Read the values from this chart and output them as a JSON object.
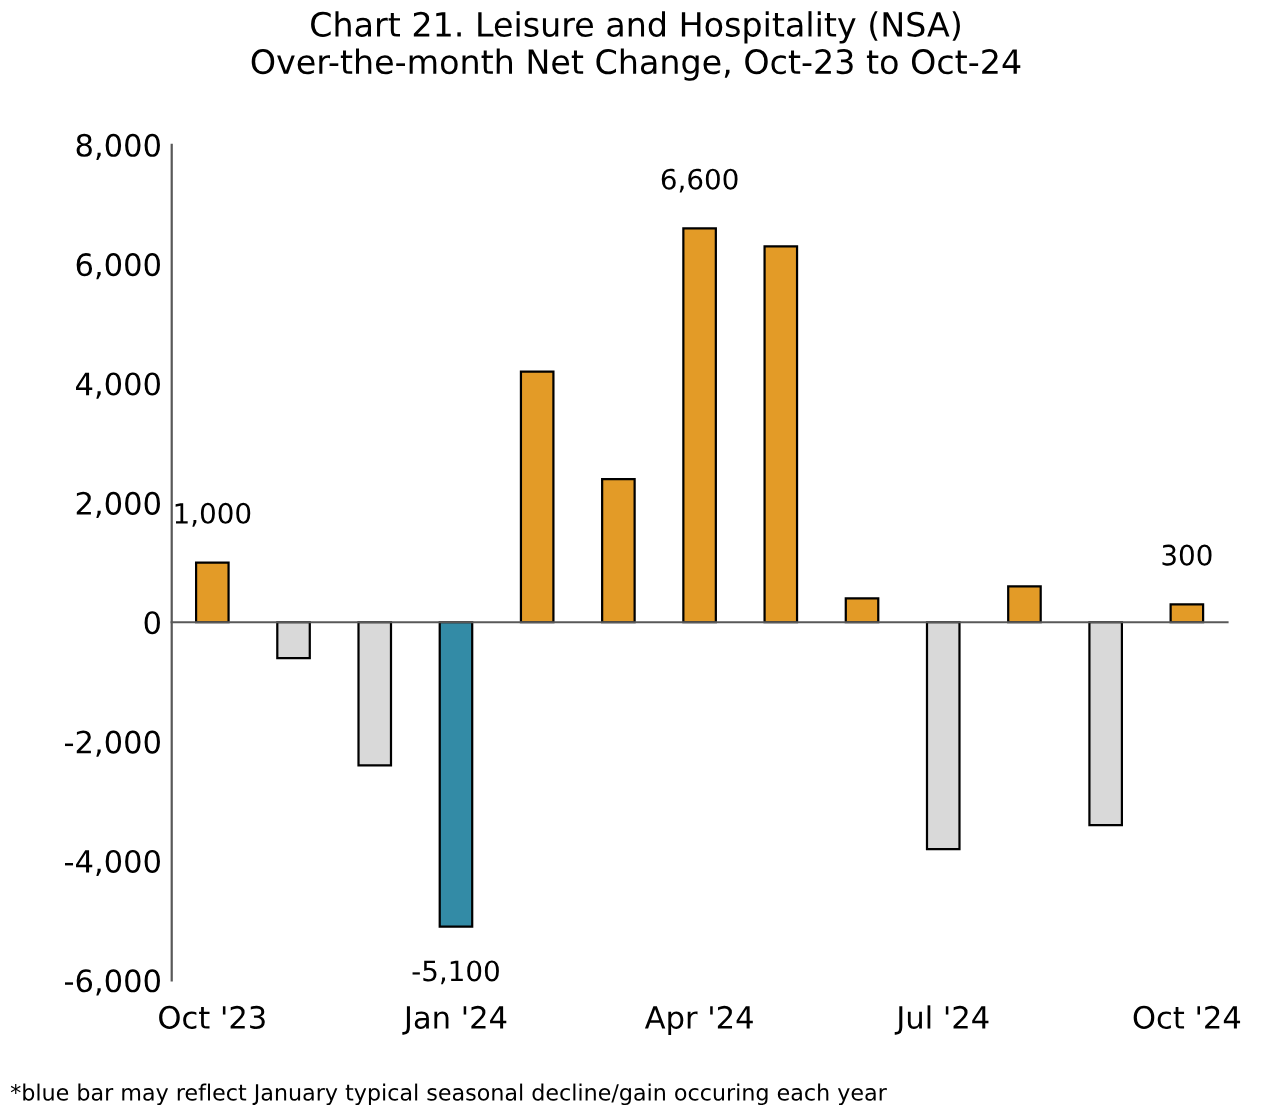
{
  "chart_data": {
    "type": "bar",
    "title": "Chart 21. Leisure and Hospitality (NSA)\nOver-the-month Net Change, Oct-23 to Oct-24",
    "categories": [
      "Oct '23",
      null,
      null,
      "Jan '24",
      null,
      null,
      "Apr '24",
      null,
      null,
      "Jul '24",
      null,
      null,
      "Oct '24"
    ],
    "values": [
      1000,
      -600,
      -2400,
      -5100,
      4200,
      2400,
      6600,
      6300,
      400,
      -3800,
      600,
      -3400,
      300
    ],
    "colors": [
      "#e39b27",
      "#d9d9d9",
      "#d9d9d9",
      "#338ba6",
      "#e39b27",
      "#e39b27",
      "#e39b27",
      "#e39b27",
      "#e39b27",
      "#d9d9d9",
      "#e39b27",
      "#d9d9d9",
      "#e39b27"
    ],
    "value_labels": [
      "1,000",
      null,
      null,
      "-5,100",
      null,
      null,
      "6,600",
      null,
      null,
      null,
      null,
      null,
      "300"
    ],
    "ylim": [
      -6000,
      8000
    ],
    "yticks": [
      {
        "value": -6000,
        "label": "-6,000"
      },
      {
        "value": -4000,
        "label": "-4,000"
      },
      {
        "value": -2000,
        "label": "-2,000"
      },
      0,
      {
        "value": 2000,
        "label": "2,000"
      },
      {
        "value": 4000,
        "label": "4,000"
      },
      {
        "value": 6000,
        "label": "6,000"
      },
      {
        "value": 8000,
        "label": "8,000"
      }
    ],
    "legend": false,
    "annotations": [
      "*blue bar may reflect January typical seasonal decline/gain occuring each year"
    ]
  }
}
